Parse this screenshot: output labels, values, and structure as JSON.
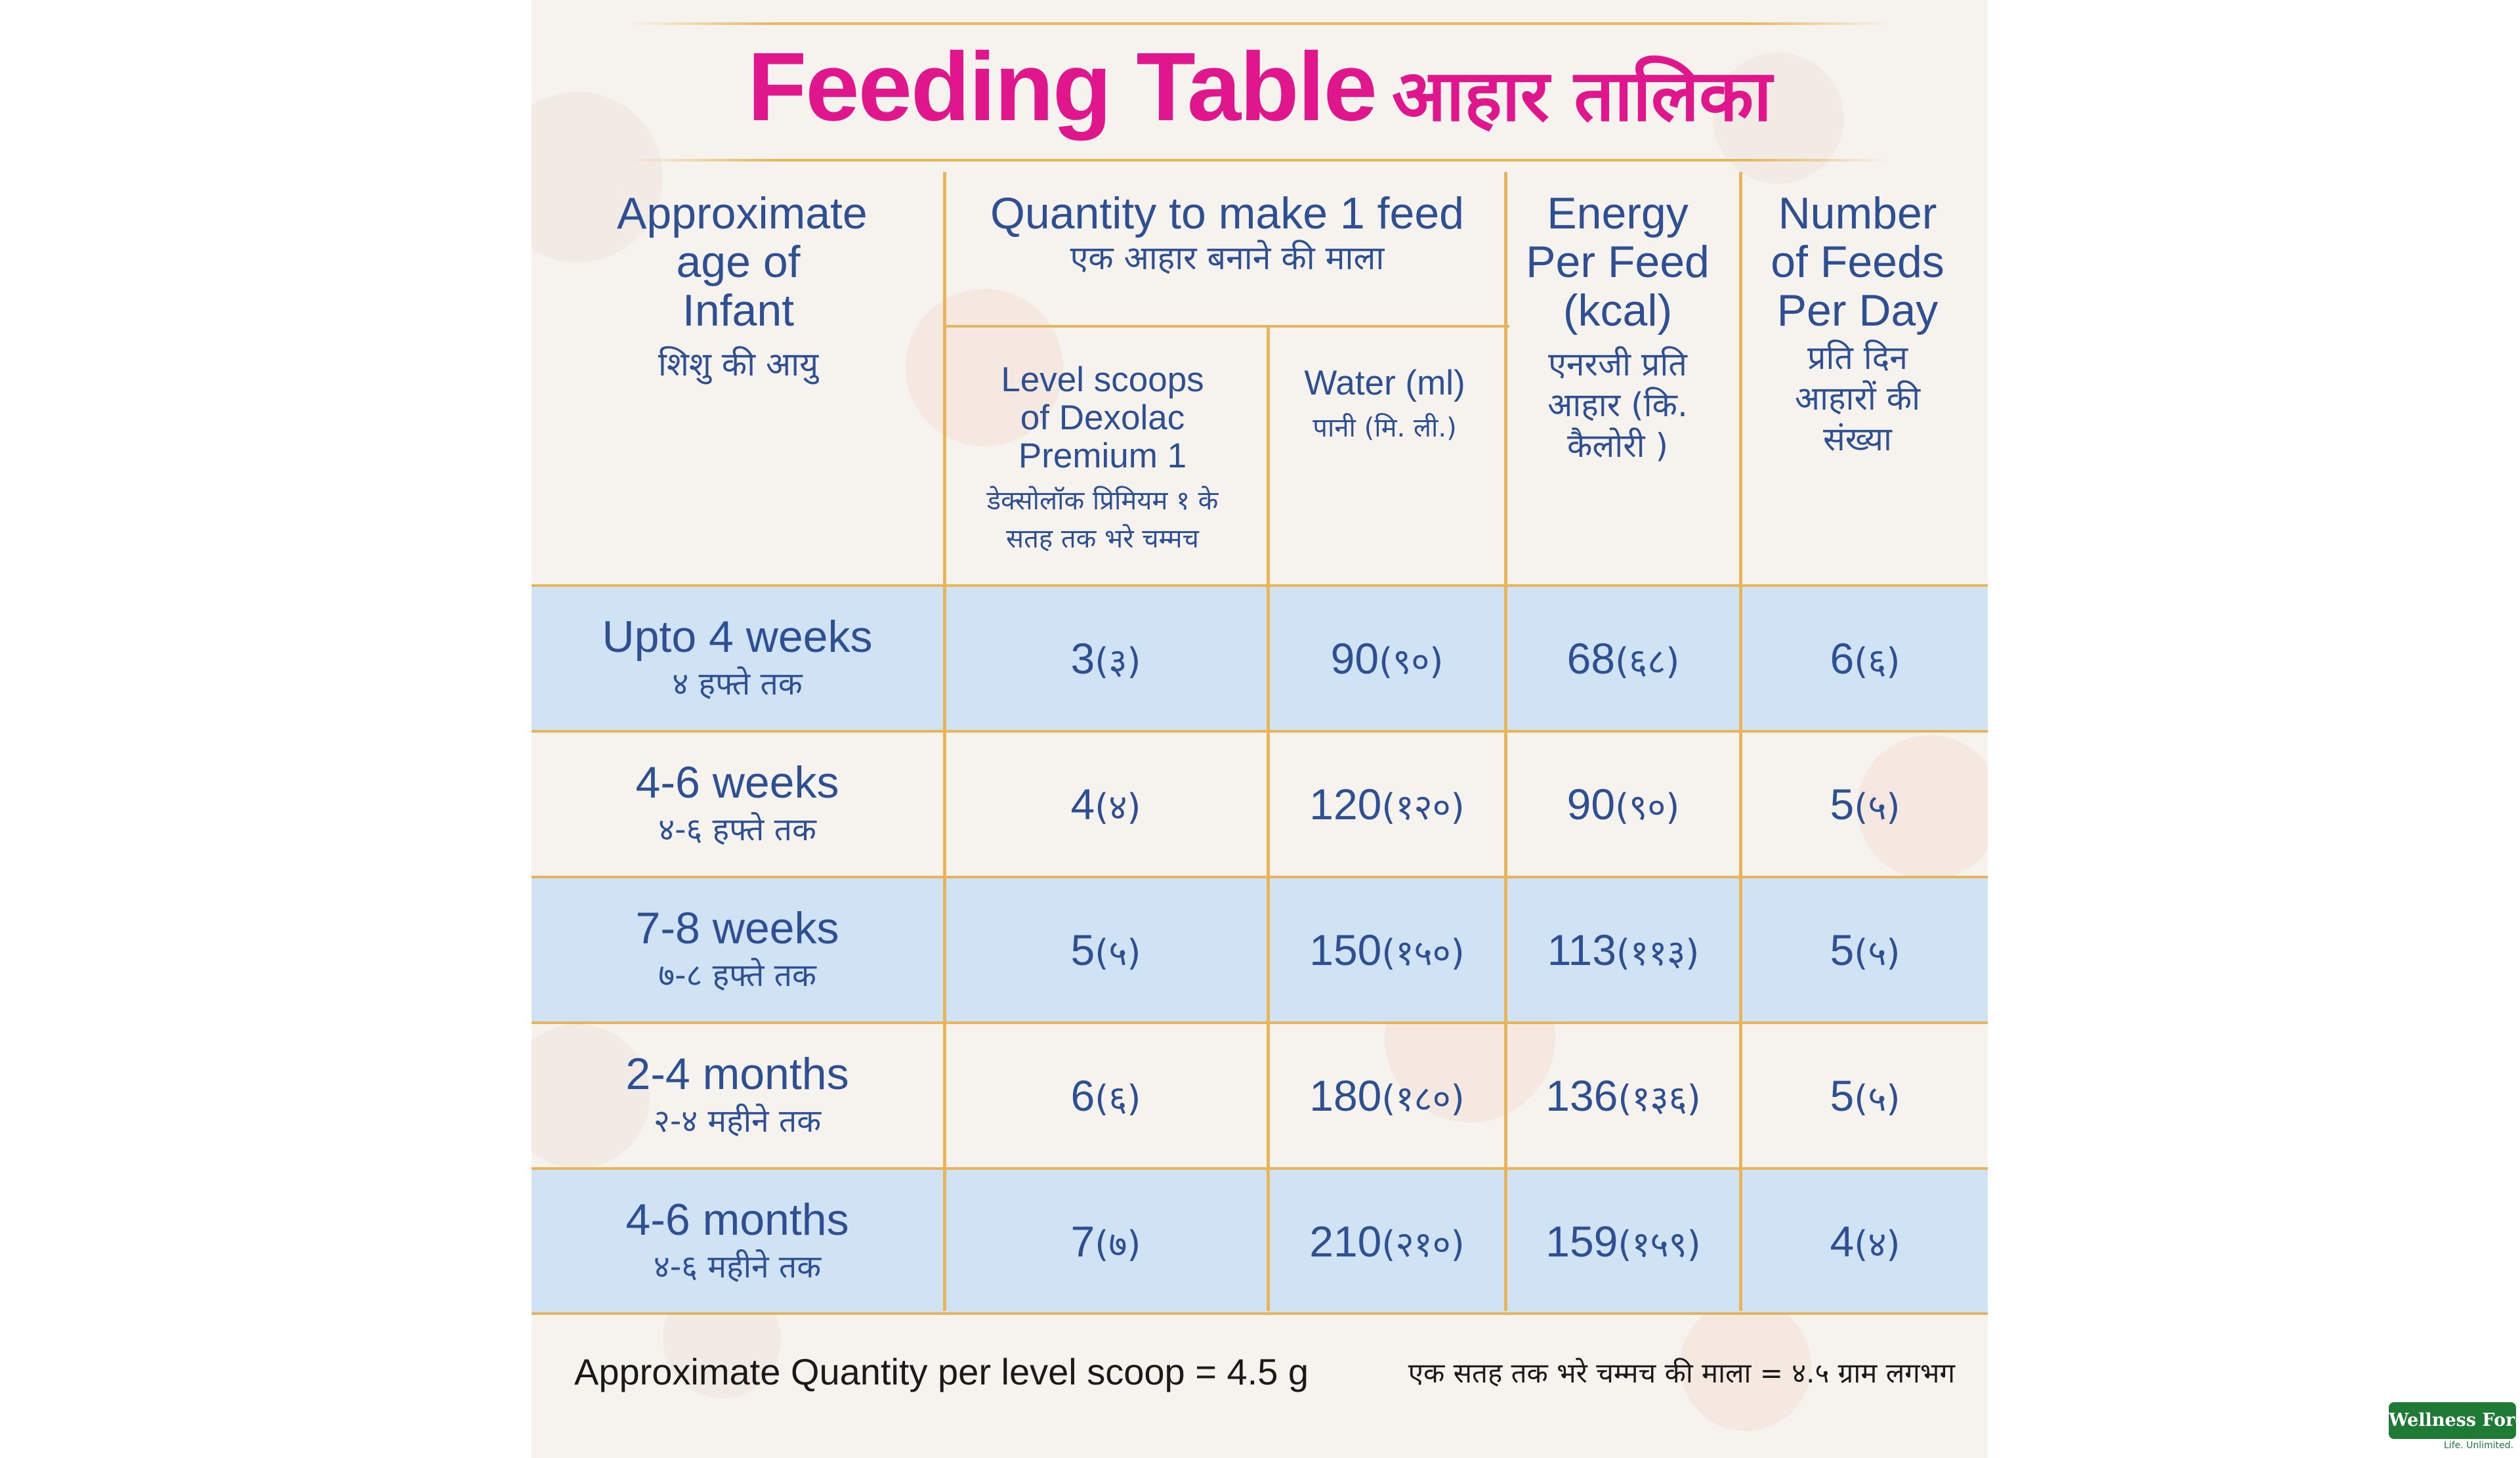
{
  "title": {
    "en": "Feeding Table",
    "hi": "आहार तालिका"
  },
  "headers": {
    "age": {
      "en": "Approximate age of Infant",
      "hi": "शिशु की आयु"
    },
    "quantity": {
      "en": "Quantity to make 1 feed",
      "hi": "एक आहार बनाने की माला"
    },
    "scoops": {
      "en": "Level scoops of Dexolac Premium 1",
      "hi": "डेक्सोलॉक प्रिमियम १ के सतह तक भरे चम्मच"
    },
    "water": {
      "en": "Water (ml)",
      "hi": "पानी (मि. ली.)"
    },
    "energy": {
      "en": "Energy Per Feed (kcal)",
      "hi": "एनरजी प्रति आहार (कि. कैलोरी )"
    },
    "feeds": {
      "en": "Number of Feeds Per Day",
      "hi": "प्रति दिन आहारों की संख्या"
    }
  },
  "rows": [
    {
      "age_en": "Upto 4 weeks",
      "age_hi": "४ हफ्ते तक",
      "scoops": "3",
      "scoops_hi": "(३)",
      "water": "90",
      "water_hi": "(९०)",
      "energy": "68",
      "energy_hi": "(६८)",
      "feeds": "6",
      "feeds_hi": "(६)"
    },
    {
      "age_en": "4-6 weeks",
      "age_hi": "४-६ हफ्ते तक",
      "scoops": "4",
      "scoops_hi": "(४)",
      "water": "120",
      "water_hi": "(१२०)",
      "energy": "90",
      "energy_hi": "(९०)",
      "feeds": "5",
      "feeds_hi": "(५)"
    },
    {
      "age_en": "7-8 weeks",
      "age_hi": "७-८ हफ्ते तक",
      "scoops": "5",
      "scoops_hi": "(५)",
      "water": "150",
      "water_hi": "(१५०)",
      "energy": "113",
      "energy_hi": "(११३)",
      "feeds": "5",
      "feeds_hi": "(५)"
    },
    {
      "age_en": "2-4 months",
      "age_hi": "२-४ महीने तक",
      "scoops": "6",
      "scoops_hi": "(६)",
      "water": "180",
      "water_hi": "(१८०)",
      "energy": "136",
      "energy_hi": "(१३६)",
      "feeds": "5",
      "feeds_hi": "(५)"
    },
    {
      "age_en": "4-6 months",
      "age_hi": "४-६ महीने तक",
      "scoops": "7",
      "scoops_hi": "(७)",
      "water": "210",
      "water_hi": "(२१०)",
      "energy": "159",
      "energy_hi": "(१५९)",
      "feeds": "4",
      "feeds_hi": "(४)"
    }
  ],
  "footer": {
    "en": "Approximate Quantity per level scoop = 4.5 g",
    "hi": "एक सतह तक भरे चम्मच की माला = ४.५ ग्राम लगभग"
  },
  "logo": {
    "name": "Wellness Forever",
    "tagline": "Life. Unlimited."
  },
  "colors": {
    "title": "#e0168c",
    "text": "#2e4f92",
    "row_highlight": "#cfe3f4",
    "rule": "#e8b45a",
    "background": "#f6f3ef"
  }
}
